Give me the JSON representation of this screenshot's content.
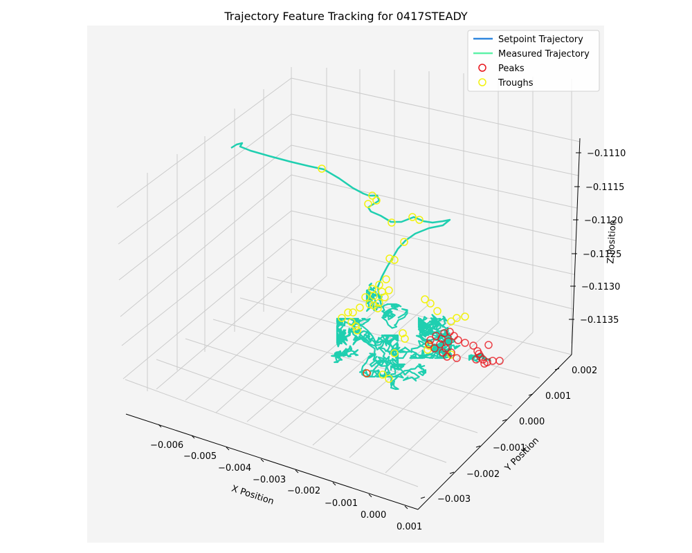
{
  "chart_data": {
    "type": "line3d",
    "title": "Trajectory Feature Tracking for 0417STEADY",
    "xlabel": "X Position",
    "ylabel": "Y Position",
    "zlabel": "Z Position",
    "xlim": [
      -0.0065,
      0.0012
    ],
    "ylim": [
      -0.0035,
      0.0022
    ],
    "zlim": [
      -0.1139,
      -0.1108
    ],
    "x_ticks": [
      "−0.006",
      "−0.005",
      "−0.004",
      "−0.003",
      "−0.002",
      "−0.001",
      "0.000",
      "0.001"
    ],
    "y_ticks": [
      "−0.003",
      "−0.002",
      "−0.001",
      "0.000",
      "0.001",
      "0.002"
    ],
    "z_ticks": [
      "−0.1110",
      "−0.1115",
      "−0.1120",
      "−0.1125",
      "−0.1130",
      "−0.1135"
    ],
    "grid": true,
    "legend_position": "top-right",
    "series": [
      {
        "name": "Setpoint Trajectory",
        "kind": "line",
        "color": "#2e86de"
      },
      {
        "name": "Measured Trajectory",
        "kind": "line",
        "color": "#5df2a8"
      },
      {
        "name": "Peaks",
        "kind": "marker",
        "color": "#e8141b"
      },
      {
        "name": "Troughs",
        "kind": "marker",
        "color": "#f2f20f"
      }
    ],
    "trajectory_color": "#1fcfb0"
  }
}
